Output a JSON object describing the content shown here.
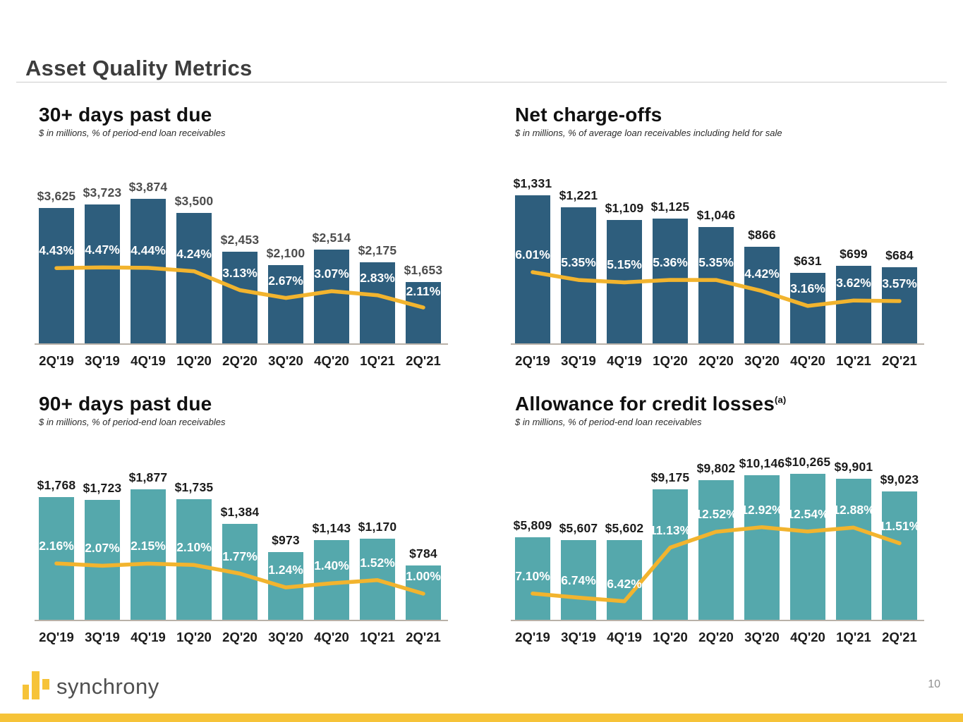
{
  "slide": {
    "title": "Asset Quality Metrics",
    "page_number": "10",
    "logo_text": "synchrony"
  },
  "colors": {
    "bar_blue": "#2E5E7D",
    "bar_teal": "#55A8AC",
    "trend_line_gold": "#F2B42E",
    "brand_gold": "#F6C338",
    "baseline_gray": "#B9B1A8"
  },
  "chart_data": [
    {
      "type": "bar+line",
      "title": "30+ days past due",
      "title_superscript": "",
      "subtitle": "$ in millions, % of period-end loan receivables",
      "categories": [
        "2Q'19",
        "3Q'19",
        "4Q'19",
        "1Q'20",
        "2Q'20",
        "3Q'20",
        "4Q'20",
        "1Q'21",
        "2Q'21"
      ],
      "series": [
        {
          "name": "dollars_millions",
          "values": [
            3625,
            3723,
            3874,
            3500,
            2453,
            2100,
            2514,
            2175,
            1653
          ],
          "labels": [
            "$3,625",
            "$3,723",
            "$3,874",
            "$3,500",
            "$2,453",
            "$2,100",
            "$2,514",
            "$2,175",
            "$1,653"
          ]
        },
        {
          "name": "percent_of_receivables",
          "values": [
            4.43,
            4.47,
            4.44,
            4.24,
            3.13,
            2.67,
            3.07,
            2.83,
            2.11
          ],
          "labels": [
            "4.43%",
            "4.47%",
            "4.44%",
            "4.24%",
            "3.13%",
            "2.67%",
            "3.07%",
            "2.83%",
            "2.11%"
          ]
        }
      ],
      "bar_color": "#2E5E7D",
      "value_label_color": "#4D4D4D",
      "line_axis_pct": [
        0,
        8.5
      ],
      "grid": false,
      "legend": false
    },
    {
      "type": "bar+line",
      "title": "Net charge-offs",
      "title_superscript": "",
      "subtitle": "$ in millions, % of average loan receivables including held for sale",
      "categories": [
        "2Q'19",
        "3Q'19",
        "4Q'19",
        "1Q'20",
        "2Q'20",
        "3Q'20",
        "4Q'20",
        "1Q'21",
        "2Q'21"
      ],
      "series": [
        {
          "name": "dollars_millions",
          "values": [
            1331,
            1221,
            1109,
            1125,
            1046,
            866,
            631,
            699,
            684
          ],
          "labels": [
            "$1,331",
            "$1,221",
            "$1,109",
            "$1,125",
            "$1,046",
            "$866",
            "$631",
            "$699",
            "$684"
          ]
        },
        {
          "name": "percent_of_receivables",
          "values": [
            6.01,
            5.35,
            5.15,
            5.36,
            5.35,
            4.42,
            3.16,
            3.62,
            3.57
          ],
          "labels": [
            "6.01%",
            "5.35%",
            "5.15%",
            "5.36%",
            "5.35%",
            "4.42%",
            "3.16%",
            "3.62%",
            "3.57%"
          ]
        }
      ],
      "bar_color": "#2E5E7D",
      "value_label_color": "#1B1B1B",
      "line_axis_pct": [
        0,
        12.5
      ],
      "grid": false,
      "legend": false
    },
    {
      "type": "bar+line",
      "title": "90+ days past due",
      "title_superscript": "",
      "subtitle": "$ in millions, % of period-end loan receivables",
      "categories": [
        "2Q'19",
        "3Q'19",
        "4Q'19",
        "1Q'20",
        "2Q'20",
        "3Q'20",
        "4Q'20",
        "1Q'21",
        "2Q'21"
      ],
      "series": [
        {
          "name": "dollars_millions",
          "values": [
            1768,
            1723,
            1877,
            1735,
            1384,
            973,
            1143,
            1170,
            784
          ],
          "labels": [
            "$1,768",
            "$1,723",
            "$1,877",
            "$1,735",
            "$1,384",
            "$973",
            "$1,143",
            "$1,170",
            "$784"
          ]
        },
        {
          "name": "percent_of_receivables",
          "values": [
            2.16,
            2.07,
            2.15,
            2.1,
            1.77,
            1.24,
            1.4,
            1.52,
            1.0
          ],
          "labels": [
            "2.16%",
            "2.07%",
            "2.15%",
            "2.10%",
            "1.77%",
            "1.24%",
            "1.40%",
            "1.52%",
            "1.00%"
          ]
        }
      ],
      "bar_color": "#55A8AC",
      "value_label_color": "#1B1B1B",
      "line_axis_pct": [
        0,
        5
      ],
      "grid": false,
      "legend": false
    },
    {
      "type": "bar+line",
      "title": "Allowance for credit losses",
      "title_superscript": "(a)",
      "subtitle": "$ in millions, % of period-end loan receivables",
      "categories": [
        "2Q'19",
        "3Q'19",
        "4Q'19",
        "1Q'20",
        "2Q'20",
        "3Q'20",
        "4Q'20",
        "1Q'21",
        "2Q'21"
      ],
      "series": [
        {
          "name": "dollars_millions",
          "values": [
            5809,
            5607,
            5602,
            9175,
            9802,
            10146,
            10265,
            9901,
            9023
          ],
          "labels": [
            "$5,809",
            "$5,607",
            "$5,602",
            "$9,175",
            "$9,802",
            "$10,146",
            "$10,265",
            "$9,901",
            "$9,023"
          ]
        },
        {
          "name": "percent_of_receivables",
          "values": [
            7.1,
            6.74,
            6.42,
            11.13,
            12.52,
            12.92,
            12.54,
            12.88,
            11.51
          ],
          "labels": [
            "7.10%",
            "6.74%",
            "6.42%",
            "11.13%",
            "12.52%",
            "12.92%",
            "12.54%",
            "12.88%",
            "11.51%"
          ]
        }
      ],
      "bar_color": "#55A8AC",
      "value_label_color": "#1B1B1B",
      "line_axis_pct": [
        4.8,
        17.6
      ],
      "grid": false,
      "legend": false
    }
  ]
}
